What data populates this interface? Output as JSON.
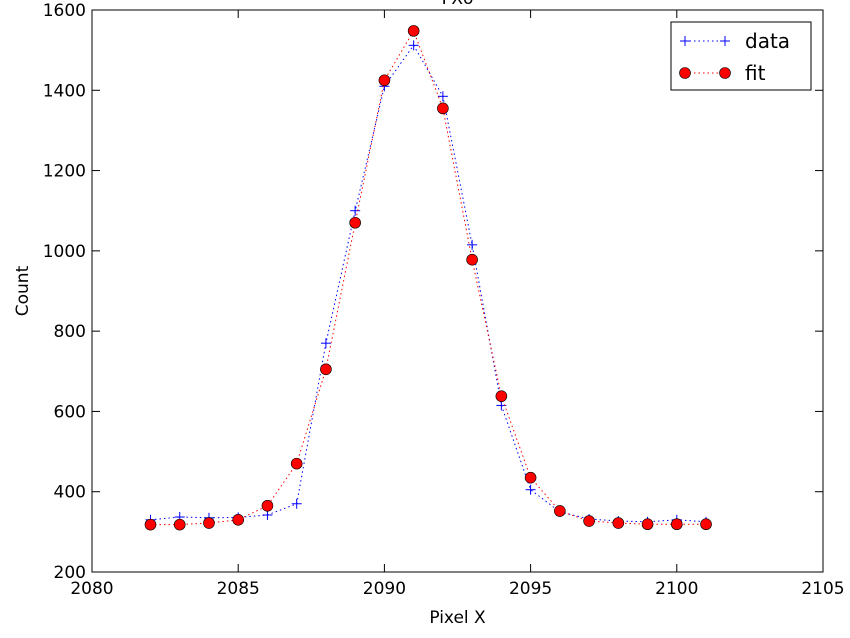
{
  "chart_data": {
    "type": "line",
    "title": "FXo",
    "xlabel": "Pixel X",
    "ylabel": "Count",
    "xlim": [
      2080,
      2105
    ],
    "ylim": [
      200,
      1600
    ],
    "xticks": [
      2080,
      2085,
      2090,
      2095,
      2100,
      2105
    ],
    "yticks": [
      200,
      400,
      600,
      800,
      1000,
      1200,
      1400,
      1600
    ],
    "xtick_labels": [
      "2080",
      "2085",
      "2090",
      "2095",
      "2100",
      "2105"
    ],
    "ytick_labels": [
      "200",
      "400",
      "600",
      "800",
      "1000",
      "1200",
      "1400",
      "1600"
    ],
    "grid": false,
    "legend_position": "top-right",
    "x": [
      2082,
      2083,
      2084,
      2085,
      2086,
      2087,
      2088,
      2089,
      2090,
      2091,
      2092,
      2093,
      2094,
      2095,
      2096,
      2097,
      2098,
      2099,
      2100,
      2101
    ],
    "series": [
      {
        "name": "data",
        "marker": "plus",
        "linestyle": "dotted",
        "color": "#0000ff",
        "values": [
          330,
          337,
          335,
          336,
          342,
          370,
          770,
          1100,
          1410,
          1512,
          1385,
          1015,
          615,
          405,
          350,
          332,
          327,
          325,
          330,
          325
        ]
      },
      {
        "name": "fit",
        "marker": "circle",
        "linestyle": "dotted",
        "color": "#ff0000",
        "values": [
          318,
          318,
          322,
          330,
          365,
          470,
          705,
          1070,
          1425,
          1548,
          1355,
          978,
          638,
          435,
          352,
          327,
          322,
          319,
          319,
          319
        ]
      }
    ]
  }
}
